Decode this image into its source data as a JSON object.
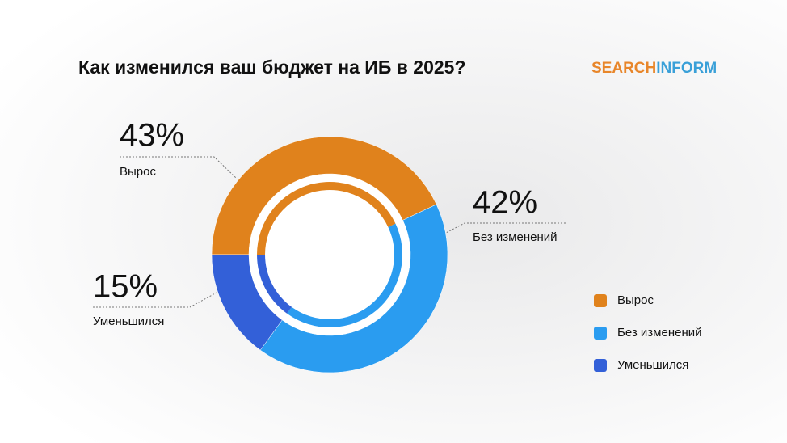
{
  "chart_data": {
    "type": "pie",
    "title": "Как изменился ваш бюджет на ИБ в 2025?",
    "brand": {
      "first": "SEARCH",
      "second": "INFORM"
    },
    "categories": [
      "Вырос",
      "Без изменений",
      "Уменьшился"
    ],
    "values": [
      43,
      42,
      15
    ],
    "value_labels": [
      "43%",
      "42%",
      "15%"
    ],
    "colors": [
      "#e0821c",
      "#2a9cf0",
      "#3360d8"
    ]
  }
}
